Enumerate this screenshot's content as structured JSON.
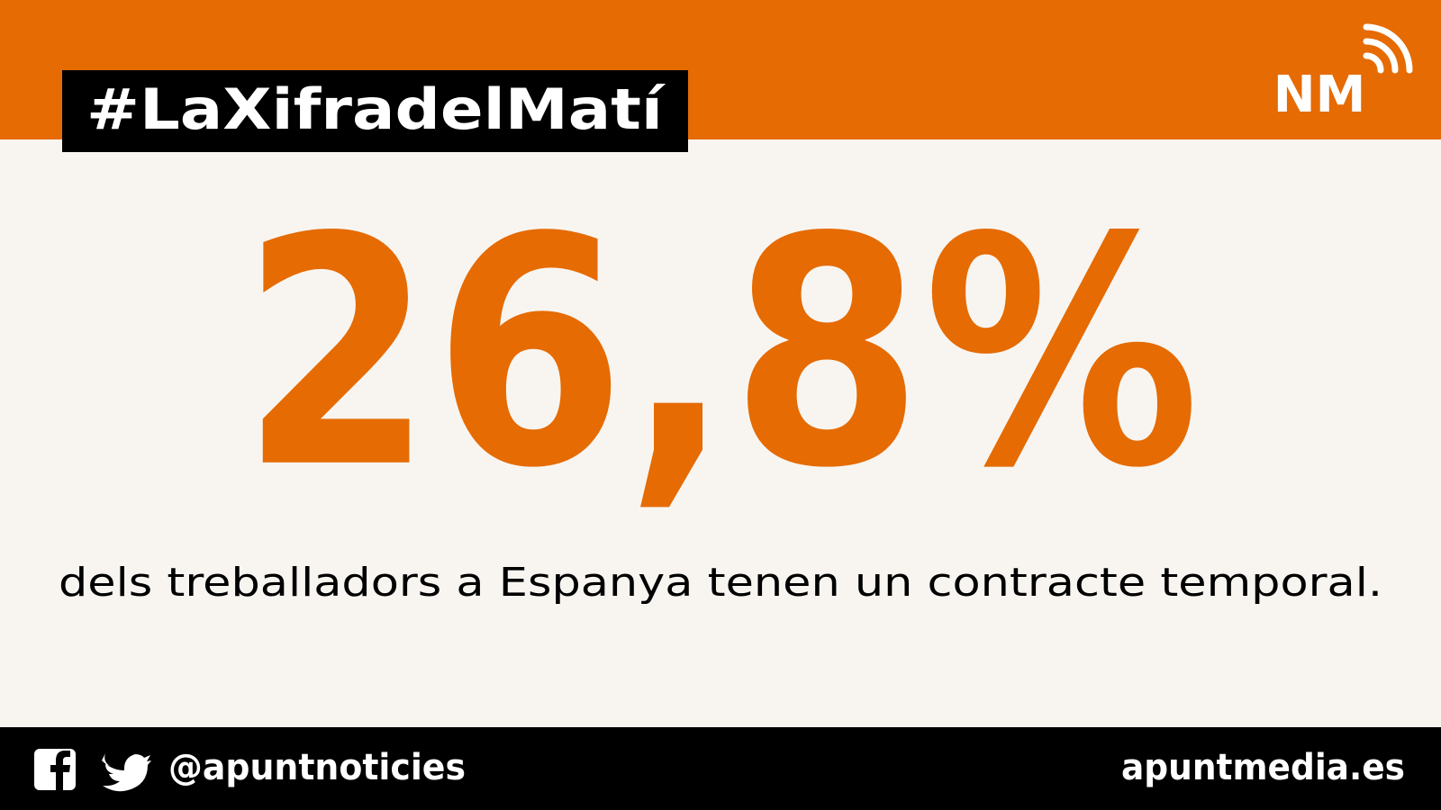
{
  "header": {
    "hashtag": "#LaXifradelMatí",
    "logo": "NM"
  },
  "main": {
    "figure": "26,8%",
    "caption": "dels treballadors a Espanya tenen un contracte temporal."
  },
  "footer": {
    "handle": "@apuntnoticies",
    "website": "apuntmedia.es"
  }
}
